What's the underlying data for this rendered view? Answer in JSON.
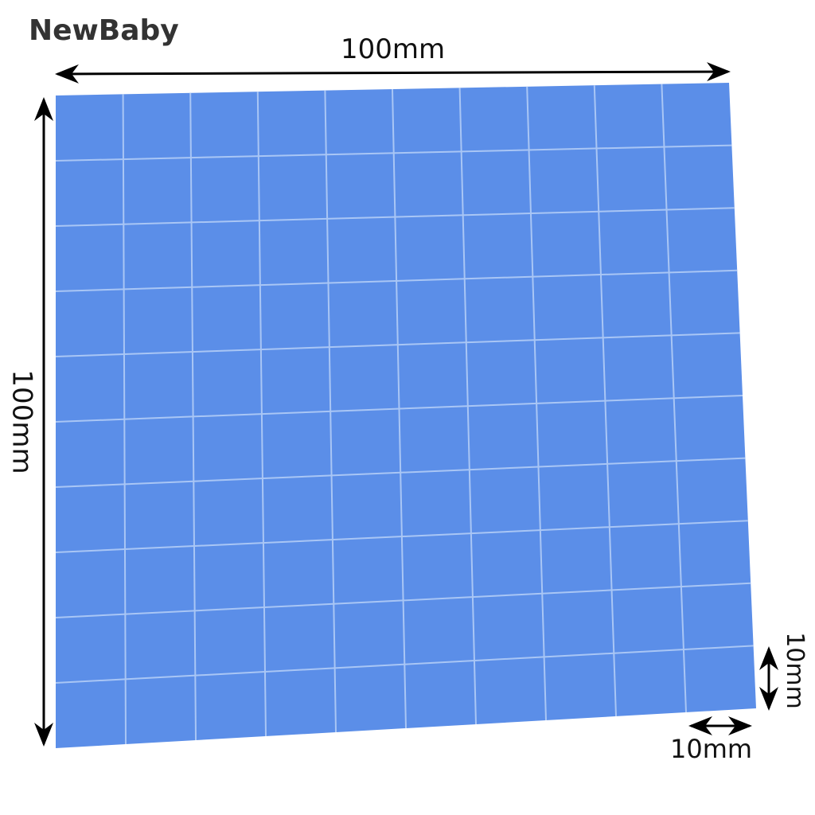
{
  "brand": "NewBaby",
  "dimensions": {
    "width_label": "100mm",
    "height_label": "100mm",
    "cell_height_label": "10mm",
    "cell_width_label": "10mm"
  },
  "product": {
    "grid_rows": 10,
    "grid_cols": 10,
    "pad_color": "#5b8ee8",
    "gap_color": "#a9c6f5"
  }
}
